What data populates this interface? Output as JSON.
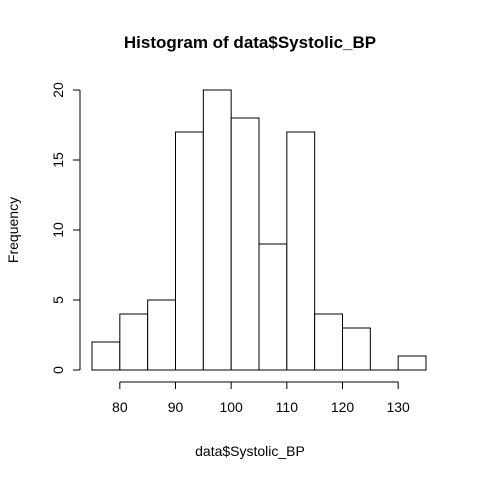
{
  "chart_data": {
    "type": "bar",
    "title": "Histogram of data$Systolic_BP",
    "xlabel": "data$Systolic_BP",
    "ylabel": "Frequency",
    "bin_edges": [
      75,
      80,
      85,
      90,
      95,
      100,
      105,
      110,
      115,
      120,
      125,
      130,
      135
    ],
    "values": [
      2,
      4,
      5,
      17,
      20,
      18,
      9,
      17,
      4,
      3,
      0,
      1
    ],
    "xticks": [
      80,
      90,
      100,
      110,
      120,
      130
    ],
    "yticks": [
      0,
      5,
      10,
      15,
      20
    ],
    "xlim": [
      75,
      135
    ],
    "ylim": [
      0,
      20
    ],
    "grid": false,
    "legend": "none",
    "colors": {
      "bar_fill": "#ffffff",
      "bar_stroke": "#000000"
    }
  }
}
